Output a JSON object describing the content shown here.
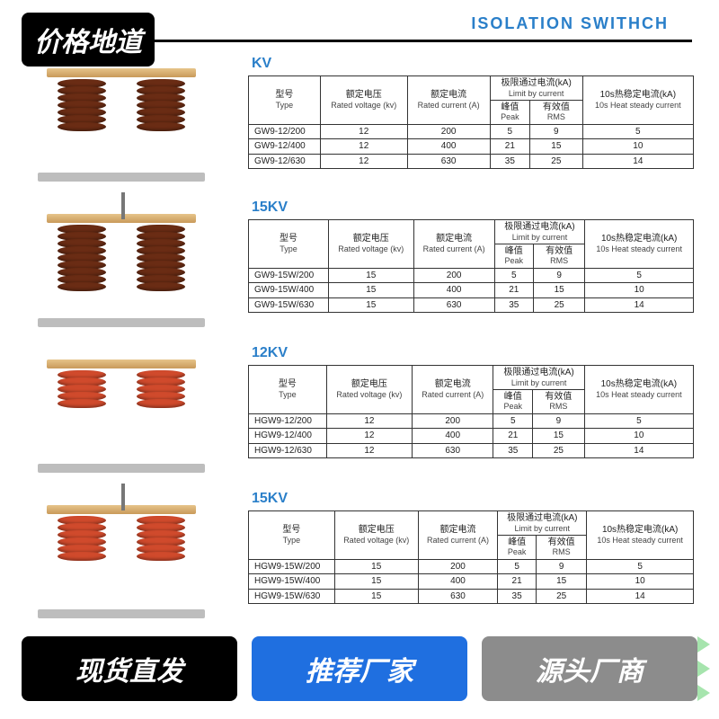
{
  "colors": {
    "brand_blue": "#2a7fc9",
    "pill_blue": "#1f6fe0",
    "pill_gray": "#8c8c8c",
    "pill_black": "#000000",
    "shed_brown": "#6a2c14",
    "shed_red": "#d04a2c",
    "border": "#333333"
  },
  "badge_top": "价格地道",
  "page_title": "ISOLATION SWITHCH",
  "bottom_bar": {
    "left": "现货直发",
    "mid": "推荐厂家",
    "right": "源头厂商"
  },
  "header_labels": {
    "type_cn": "型号",
    "type_en": "Type",
    "voltage_cn": "额定电压",
    "voltage_en": "Rated voltage (kv)",
    "current_cn": "额定电流",
    "current_en": "Rated current (A)",
    "limit_cn": "极限通过电流(kA)",
    "limit_en": "Limit by current",
    "peak_cn": "峰值",
    "peak_en": "Peak",
    "rms_cn": "有效值",
    "rms_en": "RMS",
    "heat_cn": "10s热稳定电流(kA)",
    "heat_en": "10s Heat steady current"
  },
  "sections": [
    {
      "kv_label": "KV",
      "insulator_color": "#6a2c14",
      "sheds": 7,
      "arm_vertical": false,
      "rows": [
        {
          "model": "GW9-12/200",
          "voltage": "12",
          "current": "200",
          "peak": "5",
          "rms": "9",
          "heat": "5"
        },
        {
          "model": "GW9-12/400",
          "voltage": "12",
          "current": "400",
          "peak": "21",
          "rms": "15",
          "heat": "10"
        },
        {
          "model": "GW9-12/630",
          "voltage": "12",
          "current": "630",
          "peak": "35",
          "rms": "25",
          "heat": "14"
        }
      ]
    },
    {
      "kv_label": "15KV",
      "insulator_color": "#6a2c14",
      "sheds": 9,
      "arm_vertical": true,
      "rows": [
        {
          "model": "GW9-15W/200",
          "voltage": "15",
          "current": "200",
          "peak": "5",
          "rms": "9",
          "heat": "5"
        },
        {
          "model": "GW9-15W/400",
          "voltage": "15",
          "current": "400",
          "peak": "21",
          "rms": "15",
          "heat": "10"
        },
        {
          "model": "GW9-15W/630",
          "voltage": "15",
          "current": "630",
          "peak": "35",
          "rms": "25",
          "heat": "14"
        }
      ]
    },
    {
      "kv_label": "12KV",
      "insulator_color": "#d04a2c",
      "sheds": 5,
      "arm_vertical": false,
      "rows": [
        {
          "model": "HGW9-12/200",
          "voltage": "12",
          "current": "200",
          "peak": "5",
          "rms": "9",
          "heat": "5"
        },
        {
          "model": "HGW9-12/400",
          "voltage": "12",
          "current": "400",
          "peak": "21",
          "rms": "15",
          "heat": "10"
        },
        {
          "model": "HGW9-12/630",
          "voltage": "12",
          "current": "630",
          "peak": "35",
          "rms": "25",
          "heat": "14"
        }
      ]
    },
    {
      "kv_label": "15KV",
      "insulator_color": "#d04a2c",
      "sheds": 6,
      "arm_vertical": true,
      "rows": [
        {
          "model": "HGW9-15W/200",
          "voltage": "15",
          "current": "200",
          "peak": "5",
          "rms": "9",
          "heat": "5"
        },
        {
          "model": "HGW9-15W/400",
          "voltage": "15",
          "current": "400",
          "peak": "21",
          "rms": "15",
          "heat": "10"
        },
        {
          "model": "HGW9-15W/630",
          "voltage": "15",
          "current": "630",
          "peak": "35",
          "rms": "25",
          "heat": "14"
        }
      ]
    }
  ]
}
